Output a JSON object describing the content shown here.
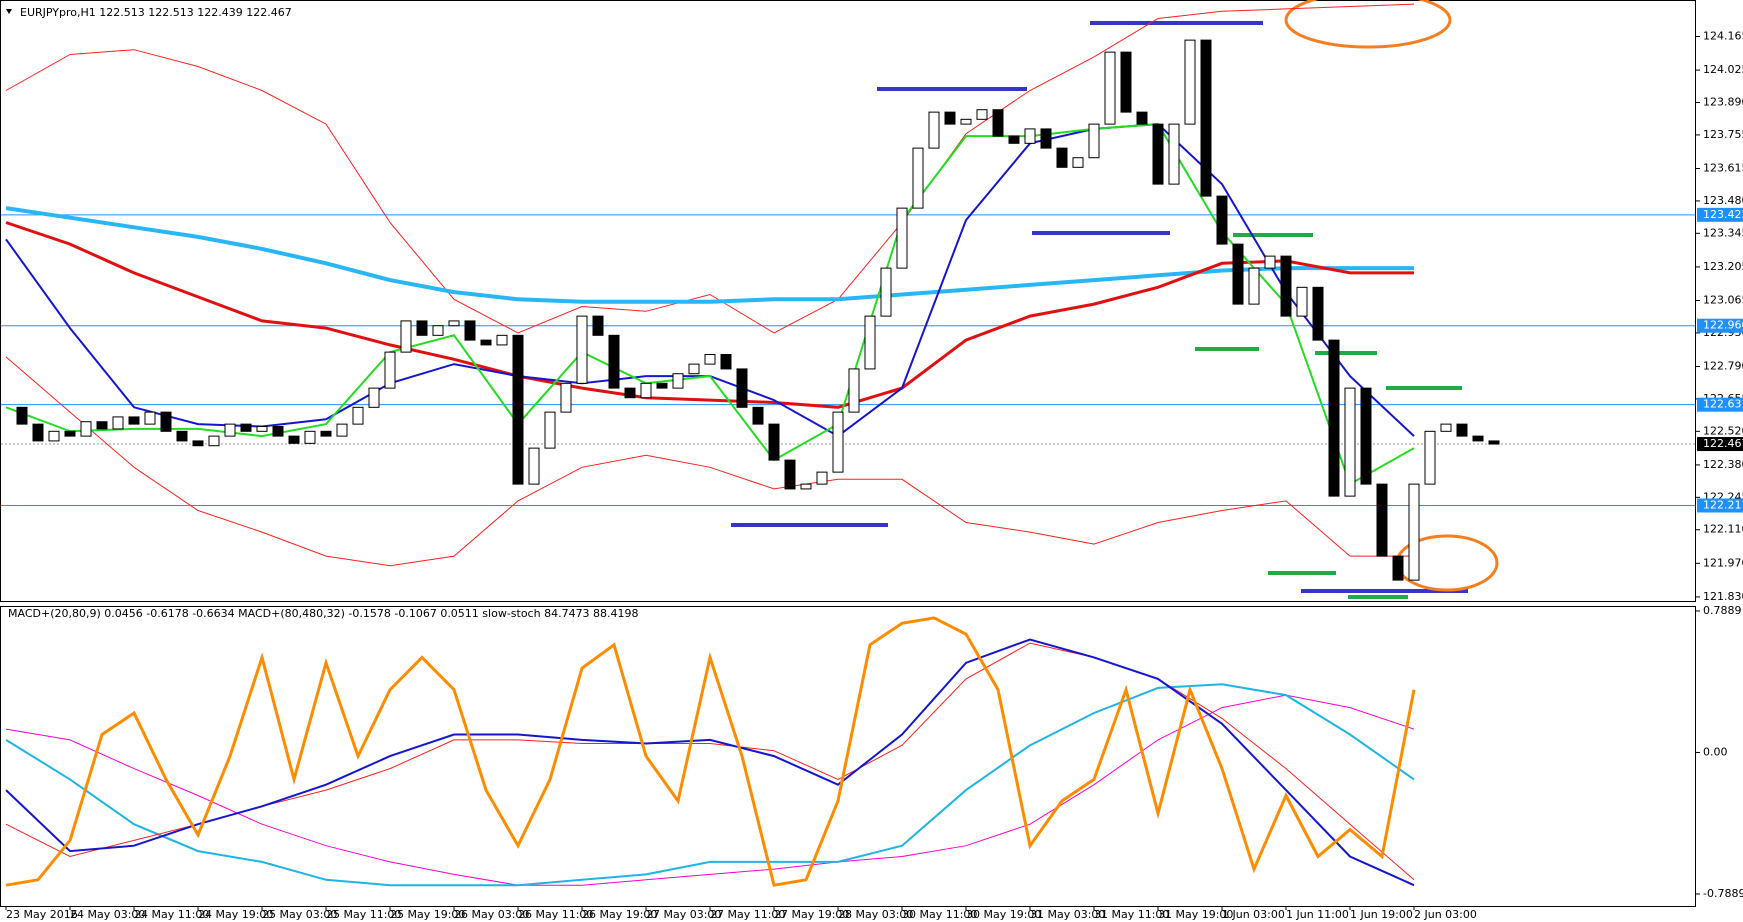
{
  "header": {
    "symbol_line": "EURJPYpro,H1  122.513 122.513 122.439 122.467",
    "indicator_line": "MACD+(20,80,9) 0.0456 -0.6178 -0.6634  MACD+(80,480,32) -0.1578 -0.1067 0.0511  slow-stoch 84.7473 88.4198"
  },
  "price_pane": {
    "ylim": [
      121.813,
      124.313
    ],
    "yticks": [
      {
        "value": 124.165,
        "label": "124.165"
      },
      {
        "value": 124.025,
        "label": "124.025"
      },
      {
        "value": 123.89,
        "label": "123.890"
      },
      {
        "value": 123.755,
        "label": "123.755"
      },
      {
        "value": 123.615,
        "label": "123.615"
      },
      {
        "value": 123.48,
        "label": "123.480"
      },
      {
        "value": 123.345,
        "label": "123.345"
      },
      {
        "value": 123.205,
        "label": "123.205"
      },
      {
        "value": 123.065,
        "label": "123.065"
      },
      {
        "value": 122.93,
        "label": "122.930"
      },
      {
        "value": 122.79,
        "label": "122.790"
      },
      {
        "value": 122.655,
        "label": "122.655"
      },
      {
        "value": 122.52,
        "label": "122.520"
      },
      {
        "value": 122.38,
        "label": "122.380"
      },
      {
        "value": 122.245,
        "label": "122.245"
      },
      {
        "value": 122.11,
        "label": "122.110"
      },
      {
        "value": 121.97,
        "label": "121.970"
      },
      {
        "value": 121.83,
        "label": "121.830"
      }
    ],
    "levels": [
      123.422,
      {
        "value": 122.96,
        "label": "122.960"
      },
      122.631,
      122.211
    ],
    "current": 122.467,
    "close": [
      122.62,
      122.55,
      122.48,
      122.52,
      122.5,
      122.56,
      122.53,
      122.58,
      122.55,
      122.6,
      122.52,
      122.48,
      122.46,
      122.5,
      122.55,
      122.52,
      122.54,
      122.5,
      122.47,
      122.52,
      122.5,
      122.55,
      122.62,
      122.7,
      122.85,
      122.98,
      122.92,
      122.96,
      122.98,
      122.9,
      122.88,
      122.92,
      122.3,
      122.45,
      122.6,
      122.72,
      123.0,
      122.92,
      122.7,
      122.66,
      122.72,
      122.7,
      122.76,
      122.8,
      122.84,
      122.78,
      122.62,
      122.55,
      122.4,
      122.28,
      122.3,
      122.35,
      122.6,
      122.78,
      123.0,
      123.2,
      123.45,
      123.7,
      123.85,
      123.8,
      123.82,
      123.86,
      123.75,
      123.72,
      123.78,
      123.7,
      123.62,
      123.66,
      123.8,
      124.1,
      123.85,
      123.8,
      123.55,
      123.8,
      124.15,
      123.5,
      123.3,
      123.05,
      123.2,
      123.25,
      123.0,
      123.12,
      122.9,
      122.25,
      122.7,
      122.3,
      122.0,
      121.9,
      122.3,
      122.52,
      122.55,
      122.5,
      122.48,
      122.467
    ],
    "series": [
      {
        "color": "#ff2020",
        "width": 1,
        "values": [
          123.94,
          124.09,
          124.11,
          124.04,
          123.94,
          123.8,
          123.39,
          123.07,
          122.93,
          123.04,
          123.02,
          123.09,
          122.93,
          123.07,
          123.39,
          123.76,
          123.94,
          124.08,
          124.24,
          124.27,
          124.28,
          124.29,
          124.3
        ]
      },
      {
        "color": "#ff2020",
        "width": 1,
        "values": [
          122.83,
          122.6,
          122.37,
          122.19,
          122.1,
          122.0,
          121.96,
          122.0,
          122.23,
          122.37,
          122.42,
          122.37,
          122.28,
          122.32,
          122.32,
          122.14,
          122.1,
          122.05,
          122.14,
          122.19,
          122.23,
          122.0,
          122.0
        ]
      },
      {
        "color": "#29b6f6",
        "width": 4,
        "values": [
          123.45,
          123.41,
          123.37,
          123.33,
          123.28,
          123.22,
          123.15,
          123.1,
          123.07,
          123.06,
          123.06,
          123.06,
          123.07,
          123.07,
          123.09,
          123.11,
          123.13,
          123.15,
          123.17,
          123.19,
          123.2,
          123.2,
          123.2
        ]
      },
      {
        "color": "#e01010",
        "width": 3,
        "values": [
          123.39,
          123.3,
          123.18,
          123.08,
          122.98,
          122.95,
          122.88,
          122.82,
          122.75,
          122.7,
          122.66,
          122.65,
          122.64,
          122.62,
          122.7,
          122.9,
          123.0,
          123.05,
          123.12,
          123.22,
          123.23,
          123.18,
          123.18
        ]
      },
      {
        "color": "#1515d0",
        "width": 2,
        "values": [
          123.32,
          122.95,
          122.62,
          122.55,
          122.54,
          122.57,
          122.72,
          122.8,
          122.75,
          122.72,
          122.75,
          122.75,
          122.65,
          122.5,
          122.7,
          123.4,
          123.72,
          123.78,
          123.8,
          123.55,
          123.1,
          122.75,
          122.5
        ]
      },
      {
        "color": "#22dd22",
        "width": 2,
        "values": [
          122.62,
          122.52,
          122.53,
          122.53,
          122.5,
          122.55,
          122.85,
          122.92,
          122.55,
          122.85,
          122.72,
          122.75,
          122.4,
          122.55,
          123.4,
          123.75,
          123.75,
          123.78,
          123.8,
          123.35,
          123.05,
          122.3,
          122.45
        ]
      }
    ]
  },
  "indicator_pane": {
    "ylim": [
      -0.856,
      0.811
    ],
    "yticks": [
      {
        "value": 0.7889,
        "label": "0.7889"
      },
      {
        "value": 0,
        "label": "0.00"
      },
      {
        "value": -0.7889,
        "label": "-0.7889"
      }
    ],
    "series": [
      {
        "color": "#ff00cc",
        "width": 1,
        "values": [
          0.13,
          0.07,
          -0.09,
          -0.24,
          -0.4,
          -0.52,
          -0.61,
          -0.68,
          -0.74,
          -0.74,
          -0.71,
          -0.68,
          -0.65,
          -0.61,
          -0.58,
          -0.52,
          -0.4,
          -0.18,
          0.07,
          0.25,
          0.32,
          0.25,
          0.13
        ]
      },
      {
        "color": "#1eb4e6",
        "width": 2,
        "values": [
          0.07,
          -0.15,
          -0.4,
          -0.55,
          -0.61,
          -0.71,
          -0.74,
          -0.74,
          -0.74,
          -0.71,
          -0.68,
          -0.61,
          -0.61,
          -0.61,
          -0.52,
          -0.21,
          0.04,
          0.22,
          0.36,
          0.38,
          0.32,
          0.1,
          -0.15
        ]
      },
      {
        "color": "#ff2020",
        "width": 1,
        "values": [
          -0.4,
          -0.58,
          -0.49,
          -0.4,
          -0.3,
          -0.21,
          -0.09,
          0.07,
          0.07,
          0.05,
          0.05,
          0.05,
          0.01,
          -0.15,
          0.04,
          0.41,
          0.61,
          0.53,
          0.41,
          0.19,
          -0.09,
          -0.4,
          -0.71
        ]
      },
      {
        "color": "#1515d0",
        "width": 2,
        "values": [
          -0.21,
          -0.55,
          -0.52,
          -0.4,
          -0.3,
          -0.18,
          -0.02,
          0.1,
          0.1,
          0.07,
          0.05,
          0.07,
          -0.02,
          -0.18,
          0.1,
          0.5,
          0.63,
          0.53,
          0.41,
          0.16,
          -0.21,
          -0.58,
          -0.74
        ]
      },
      {
        "color": "#ff8c00",
        "width": 3,
        "values": [
          -0.74,
          -0.71,
          -0.49,
          0.1,
          0.22,
          -0.15,
          -0.46,
          -0.02,
          0.53,
          -0.15,
          0.5,
          -0.02,
          0.35,
          0.53,
          0.35,
          -0.21,
          -0.52,
          -0.15,
          0.47,
          0.6,
          -0.02,
          -0.27,
          0.53,
          -0.02,
          -0.74,
          -0.71,
          -0.27,
          0.6,
          0.72,
          0.75,
          0.66,
          0.35,
          -0.52,
          -0.27,
          -0.15,
          0.35,
          -0.34,
          0.35,
          -0.09,
          -0.65,
          -0.24,
          -0.58,
          -0.43,
          -0.58,
          0.35
        ]
      }
    ]
  },
  "time_labels": [
    "23 May 2016",
    "24 May 03:00",
    "24 May 11:00",
    "24 May 19:00",
    "25 May 03:00",
    "25 May 11:00",
    "25 May 19:00",
    "26 May 03:00",
    "26 May 11:00",
    "26 May 19:00",
    "27 May 03:00",
    "27 May 11:00",
    "27 May 19:00",
    "28 May 03:00",
    "30 May 11:00",
    "30 May 19:00",
    "31 May 03:00",
    "31 May 11:00",
    "31 May 19:00",
    "1 Jun 03:00",
    "1 Jun 11:00",
    "1 Jun 19:00",
    "2 Jun 03:00"
  ]
}
